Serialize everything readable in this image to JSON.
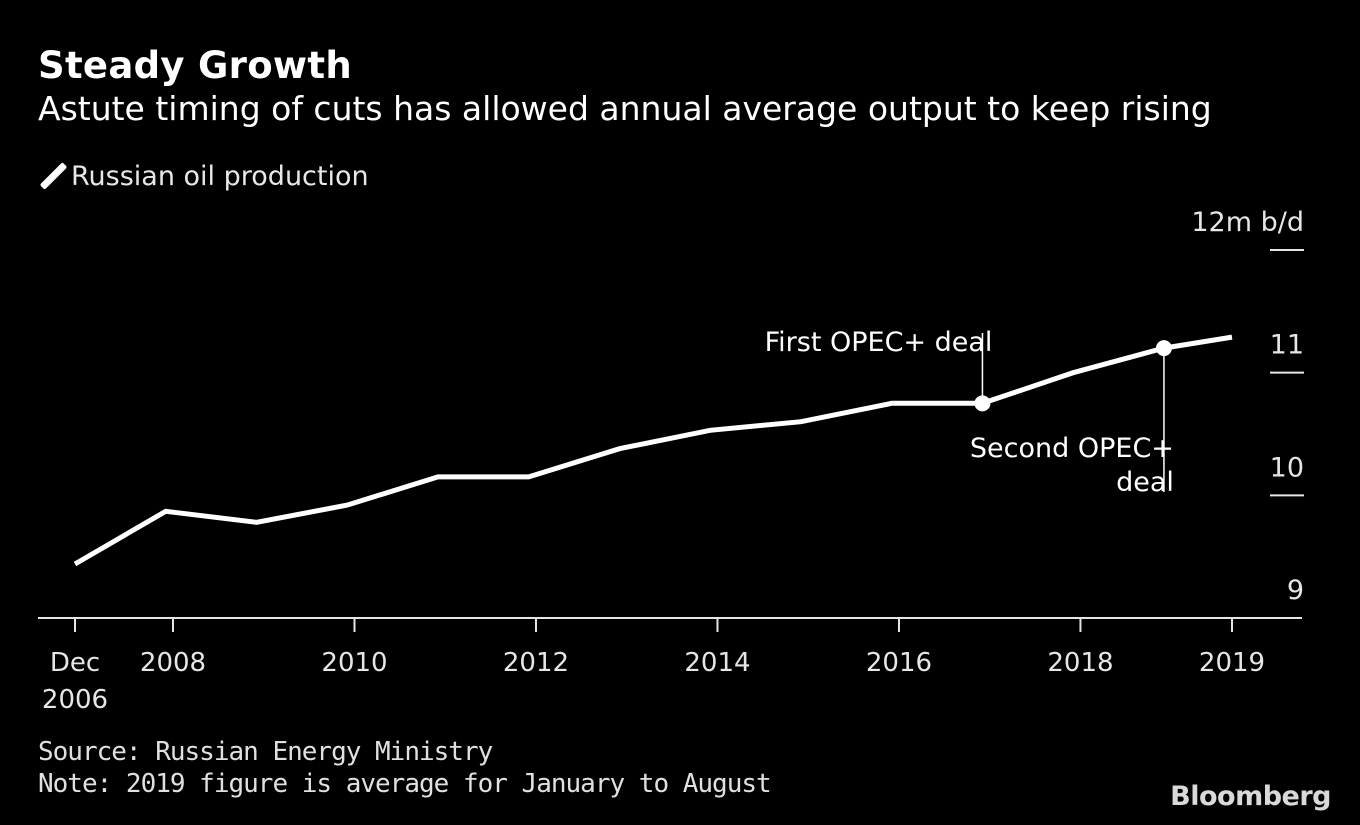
{
  "title": "Steady Growth",
  "subtitle": "Astute timing of cuts has allowed annual average output to keep rising",
  "legend": {
    "label": "Russian oil production"
  },
  "source": "Source: Russian Energy Ministry",
  "note": "Note: 2019 figure is average for January to August",
  "logo": "Bloomberg",
  "chart_data": {
    "type": "line",
    "title": "Steady Growth",
    "subtitle": "Astute timing of cuts has allowed annual average output to keep rising",
    "ylabel": "",
    "xlabel": "",
    "y_unit_label": "12m b/d",
    "ylim": [
      9,
      12
    ],
    "yticks": [
      9,
      10,
      11,
      12
    ],
    "ytick_labels": [
      "9",
      "10",
      "11",
      "12m b/d"
    ],
    "xticks": [
      2006.92,
      2008,
      2010,
      2012,
      2014,
      2016,
      2018,
      2019.67
    ],
    "xtick_labels": [
      "Dec\n2006",
      "2008",
      "2010",
      "2012",
      "2014",
      "2016",
      "2018",
      "2019"
    ],
    "grid": false,
    "series": [
      {
        "name": "Russian oil production",
        "color": "#ffffff",
        "x": [
          2006.92,
          2007.92,
          2008.92,
          2009.92,
          2010.92,
          2011.92,
          2012.92,
          2013.92,
          2014.92,
          2015.92,
          2016.92,
          2017.92,
          2018.92,
          2019.67
        ],
        "values": [
          9.44,
          9.87,
          9.78,
          9.92,
          10.15,
          10.15,
          10.38,
          10.53,
          10.6,
          10.75,
          10.75,
          11.0,
          11.2,
          11.29
        ]
      }
    ],
    "annotations": [
      {
        "text": "First OPEC+ deal",
        "x": 2016.92,
        "y": 10.75,
        "position": "above"
      },
      {
        "text": "Second OPEC+\ndeal",
        "x": 2018.92,
        "y": 11.2,
        "position": "below"
      }
    ]
  }
}
